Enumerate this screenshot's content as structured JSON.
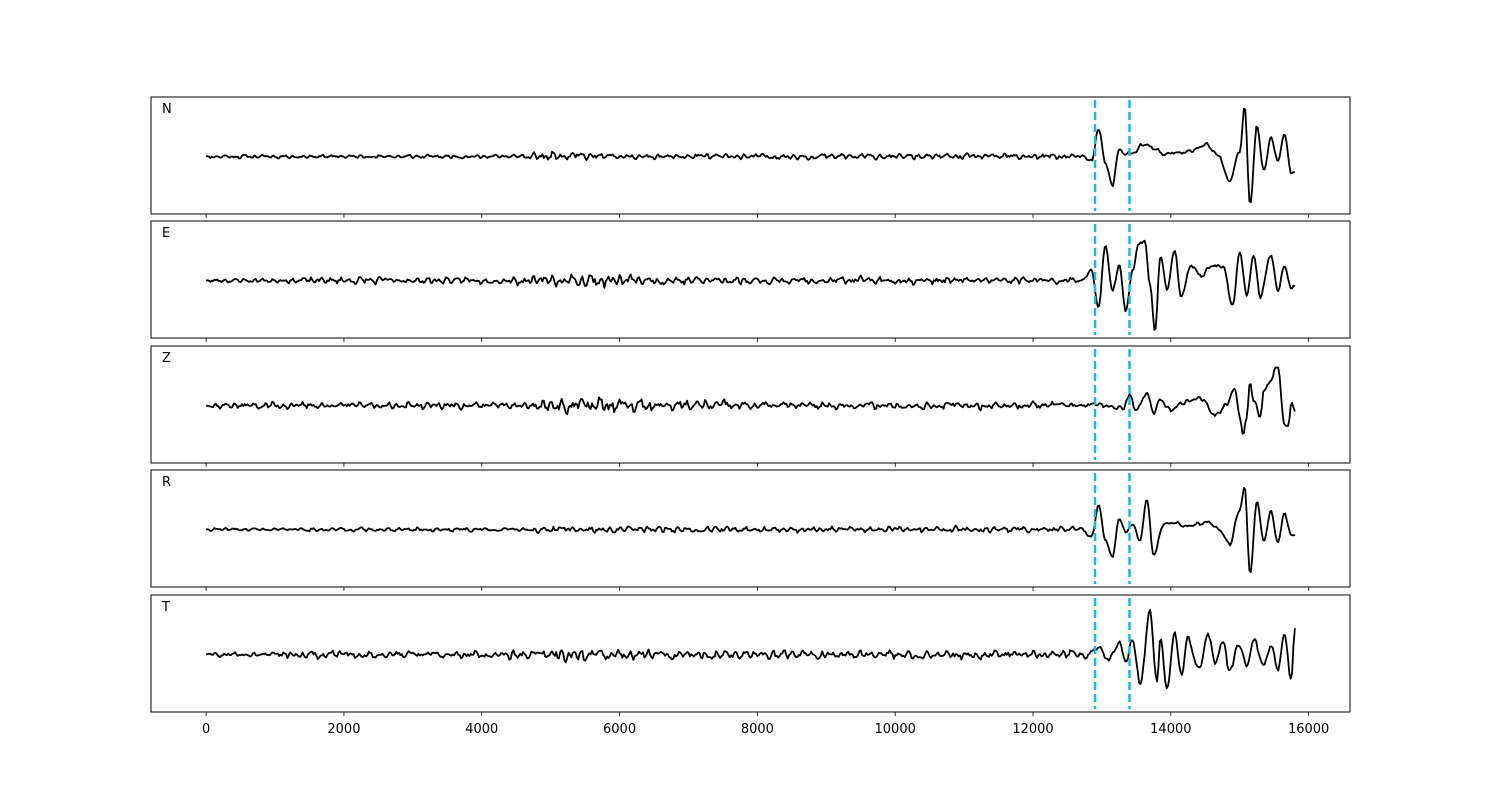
{
  "chart_data": {
    "type": "line",
    "x_range": [
      0,
      15800
    ],
    "xlim": [
      -800,
      16600
    ],
    "x_ticks": [
      0,
      2000,
      4000,
      6000,
      8000,
      10000,
      12000,
      14000,
      16000
    ],
    "x_tick_labels": [
      "0",
      "2000",
      "4000",
      "6000",
      "8000",
      "10000",
      "12000",
      "14000",
      "16000"
    ],
    "grid": false,
    "line_color": "#000000",
    "marker_color": "#17becf",
    "markers": [
      {
        "x": 12900,
        "style": "dashed"
      },
      {
        "x": 13400,
        "style": "dashed"
      }
    ],
    "panels": [
      {
        "label": "N",
        "seed": 11,
        "noise_segments": [
          [
            0,
            0.05
          ],
          [
            4600,
            0.12
          ],
          [
            5500,
            0.09
          ],
          [
            6500,
            0.08
          ],
          [
            12600,
            0.06
          ]
        ],
        "waveform": [
          [
            12700,
            0.0
          ],
          [
            12850,
            -0.1
          ],
          [
            12950,
            0.55
          ],
          [
            13050,
            -0.1
          ],
          [
            13150,
            -0.6
          ],
          [
            13250,
            0.15
          ],
          [
            13350,
            0.05
          ],
          [
            13450,
            0.05
          ],
          [
            13600,
            0.25
          ],
          [
            13750,
            0.15
          ],
          [
            13900,
            0.05
          ],
          [
            14100,
            0.08
          ],
          [
            14300,
            0.1
          ],
          [
            14500,
            0.25
          ],
          [
            14700,
            0.0
          ],
          [
            14850,
            -0.5
          ],
          [
            15000,
            0.1
          ],
          [
            15070,
            1.0
          ],
          [
            15150,
            -0.95
          ],
          [
            15250,
            0.6
          ],
          [
            15350,
            -0.3
          ],
          [
            15450,
            0.4
          ],
          [
            15550,
            -0.1
          ],
          [
            15650,
            0.45
          ],
          [
            15750,
            -0.35
          ],
          [
            15800,
            -0.35
          ]
        ]
      },
      {
        "label": "E",
        "seed": 23,
        "noise_segments": [
          [
            0,
            0.06
          ],
          [
            1400,
            0.1
          ],
          [
            2800,
            0.09
          ],
          [
            4400,
            0.12
          ],
          [
            5000,
            0.18
          ],
          [
            6200,
            0.12
          ],
          [
            7200,
            0.1
          ],
          [
            12600,
            0.06
          ]
        ],
        "waveform": [
          [
            12700,
            0.0
          ],
          [
            12850,
            0.2
          ],
          [
            12950,
            -0.55
          ],
          [
            13050,
            0.7
          ],
          [
            13150,
            -0.2
          ],
          [
            13250,
            0.3
          ],
          [
            13350,
            -0.6
          ],
          [
            13450,
            0.2
          ],
          [
            13520,
            0.7
          ],
          [
            13620,
            0.8
          ],
          [
            13700,
            -0.1
          ],
          [
            13770,
            -1.0
          ],
          [
            13850,
            0.5
          ],
          [
            13950,
            -0.2
          ],
          [
            14050,
            0.6
          ],
          [
            14150,
            -0.3
          ],
          [
            14300,
            0.3
          ],
          [
            14450,
            0.1
          ],
          [
            14600,
            0.3
          ],
          [
            14750,
            0.3
          ],
          [
            14900,
            -0.5
          ],
          [
            15000,
            0.6
          ],
          [
            15100,
            -0.3
          ],
          [
            15200,
            0.5
          ],
          [
            15300,
            -0.3
          ],
          [
            15450,
            0.5
          ],
          [
            15550,
            -0.2
          ],
          [
            15650,
            0.3
          ],
          [
            15750,
            -0.15
          ],
          [
            15800,
            -0.15
          ]
        ]
      },
      {
        "label": "Z",
        "seed": 37,
        "noise_segments": [
          [
            0,
            0.08
          ],
          [
            700,
            0.1
          ],
          [
            4800,
            0.22
          ],
          [
            6500,
            0.15
          ],
          [
            7800,
            0.1
          ],
          [
            12600,
            0.07
          ]
        ],
        "waveform": [
          [
            13000,
            0.0
          ],
          [
            13300,
            -0.05
          ],
          [
            13400,
            0.2
          ],
          [
            13500,
            -0.1
          ],
          [
            13650,
            0.25
          ],
          [
            13750,
            -0.15
          ],
          [
            13850,
            0.1
          ],
          [
            14000,
            -0.1
          ],
          [
            14250,
            0.1
          ],
          [
            14450,
            0.15
          ],
          [
            14650,
            -0.2
          ],
          [
            14800,
            0.0
          ],
          [
            14920,
            0.35
          ],
          [
            15000,
            -0.2
          ],
          [
            15050,
            -0.6
          ],
          [
            15100,
            -0.25
          ],
          [
            15150,
            0.5
          ],
          [
            15200,
            0.1
          ],
          [
            15300,
            -0.2
          ],
          [
            15350,
            0.3
          ],
          [
            15450,
            0.5
          ],
          [
            15550,
            0.8
          ],
          [
            15650,
            -0.4
          ],
          [
            15700,
            -0.4
          ],
          [
            15750,
            0.05
          ],
          [
            15800,
            -0.1
          ]
        ]
      },
      {
        "label": "R",
        "seed": 41,
        "noise_segments": [
          [
            0,
            0.04
          ],
          [
            1500,
            0.06
          ],
          [
            4800,
            0.11
          ],
          [
            5500,
            0.09
          ],
          [
            7000,
            0.08
          ],
          [
            12600,
            0.05
          ]
        ],
        "waveform": [
          [
            12700,
            0.0
          ],
          [
            12850,
            -0.15
          ],
          [
            12950,
            0.5
          ],
          [
            13050,
            -0.2
          ],
          [
            13150,
            -0.55
          ],
          [
            13250,
            0.2
          ],
          [
            13350,
            -0.05
          ],
          [
            13450,
            0.1
          ],
          [
            13550,
            -0.25
          ],
          [
            13650,
            0.6
          ],
          [
            13750,
            -0.5
          ],
          [
            13900,
            0.1
          ],
          [
            14050,
            0.15
          ],
          [
            14200,
            0.05
          ],
          [
            14400,
            0.1
          ],
          [
            14550,
            0.15
          ],
          [
            14700,
            0.0
          ],
          [
            14850,
            -0.3
          ],
          [
            15000,
            0.4
          ],
          [
            15070,
            0.85
          ],
          [
            15150,
            -0.85
          ],
          [
            15250,
            0.55
          ],
          [
            15350,
            -0.25
          ],
          [
            15450,
            0.4
          ],
          [
            15550,
            -0.25
          ],
          [
            15650,
            0.3
          ],
          [
            15750,
            -0.1
          ],
          [
            15800,
            -0.1
          ]
        ]
      },
      {
        "label": "T",
        "seed": 59,
        "noise_segments": [
          [
            0,
            0.06
          ],
          [
            1000,
            0.12
          ],
          [
            2500,
            0.1
          ],
          [
            4400,
            0.14
          ],
          [
            5000,
            0.2
          ],
          [
            6000,
            0.15
          ],
          [
            7000,
            0.12
          ],
          [
            12600,
            0.1
          ]
        ],
        "waveform": [
          [
            12800,
            0.0
          ],
          [
            12950,
            0.15
          ],
          [
            13100,
            -0.1
          ],
          [
            13250,
            0.25
          ],
          [
            13350,
            -0.1
          ],
          [
            13450,
            0.3
          ],
          [
            13550,
            -0.6
          ],
          [
            13700,
            0.85
          ],
          [
            13800,
            -0.6
          ],
          [
            13850,
            0.3
          ],
          [
            13950,
            -0.7
          ],
          [
            14050,
            0.4
          ],
          [
            14150,
            -0.4
          ],
          [
            14250,
            0.3
          ],
          [
            14400,
            -0.3
          ],
          [
            14550,
            0.4
          ],
          [
            14650,
            -0.2
          ],
          [
            14750,
            0.3
          ],
          [
            14850,
            -0.3
          ],
          [
            15000,
            0.2
          ],
          [
            15100,
            -0.2
          ],
          [
            15200,
            0.3
          ],
          [
            15350,
            -0.2
          ],
          [
            15450,
            0.2
          ],
          [
            15550,
            -0.3
          ],
          [
            15650,
            0.4
          ],
          [
            15750,
            -0.5
          ],
          [
            15800,
            0.55
          ]
        ]
      }
    ]
  }
}
